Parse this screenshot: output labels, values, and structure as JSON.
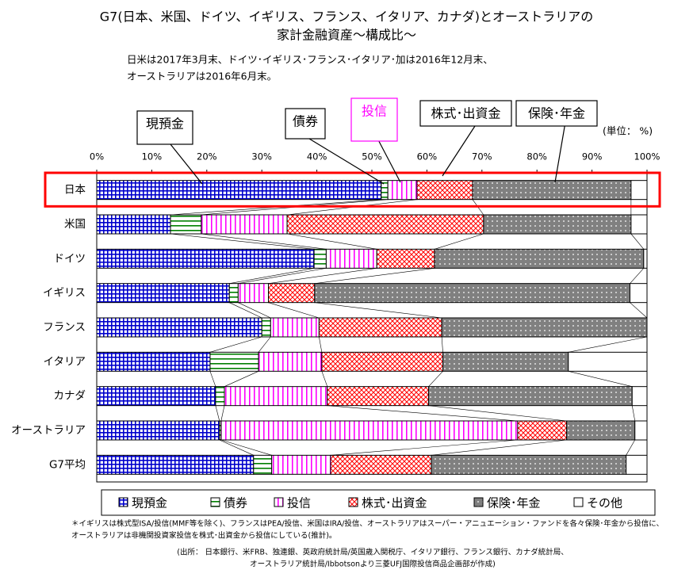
{
  "chart_data": {
    "type": "stacked-barh",
    "title": [
      "G7(日本、米国、ドイツ、イギリス、フランス、イタリア、カナダ)とオーストラリアの",
      "家計金融資産～構成比～"
    ],
    "subtitle": [
      "日米は2017年3月末、ドイツ･イギリス･フランス･イタリア･加は2016年12月末、",
      "オーストラリアは2016年6月末。"
    ],
    "unit_label": "(単位： %)",
    "annotations": [
      "現預金",
      "債券",
      "投信",
      "株式･出資金",
      "保険･年金"
    ],
    "categories": [
      "日本",
      "米国",
      "ドイツ",
      "イギリス",
      "フランス",
      "イタリア",
      "カナダ",
      "オーストラリア",
      "G7平均"
    ],
    "series": [
      {
        "name": "現預金",
        "color": "#0000cc",
        "values": [
          51.7,
          13.4,
          39.5,
          24.1,
          30.0,
          20.6,
          21.6,
          22.3,
          28.5
        ]
      },
      {
        "name": "債券",
        "color": "#008000",
        "values": [
          1.2,
          5.6,
          2.2,
          1.6,
          1.6,
          8.8,
          1.6,
          0.3,
          3.3
        ]
      },
      {
        "name": "投信",
        "color": "#ff00ff",
        "values": [
          5.3,
          15.6,
          9.2,
          5.5,
          8.8,
          11.5,
          18.7,
          53.9,
          10.7
        ]
      },
      {
        "name": "株式･出資金",
        "color": "#ff0000",
        "values": [
          10.1,
          35.7,
          10.5,
          8.4,
          22.3,
          22.0,
          18.4,
          8.9,
          18.3
        ]
      },
      {
        "name": "保険･年金",
        "color": "#808080",
        "values": [
          28.8,
          26.8,
          38.0,
          57.3,
          37.3,
          22.8,
          37.0,
          12.4,
          35.4
        ]
      },
      {
        "name": "その他",
        "color": "#ffffff",
        "values": [
          2.9,
          2.9,
          0.6,
          3.1,
          0.0,
          14.3,
          2.7,
          2.2,
          3.8
        ]
      }
    ],
    "xlim": [
      0,
      100
    ],
    "xticks": [
      {
        "value": 0,
        "label": "0%"
      },
      {
        "value": 10,
        "label": "10%"
      },
      {
        "value": 20,
        "label": "20%"
      },
      {
        "value": 30,
        "label": "30%"
      },
      {
        "value": 40,
        "label": "40%"
      },
      {
        "value": 50,
        "label": "50%"
      },
      {
        "value": 60,
        "label": "60%"
      },
      {
        "value": 70,
        "label": "70%"
      },
      {
        "value": 80,
        "label": "80%"
      },
      {
        "value": 90,
        "label": "90%"
      },
      {
        "value": 100,
        "label": "100%"
      }
    ],
    "highlight_color": "#ff0000",
    "footnotes": [
      "＊イギリスは株式型ISA/投信(MMF等を除く)、フランスはPEA/投信、米国はIRA/投信、オーストラリアはスーパー・アニュエーション・ファンドを各々保険･年金から投信に、",
      "オーストラリアは非機関投資家投信を株式･出資金から投信にしている(推計)。"
    ],
    "source": [
      "(出所： 日本銀行、米FRB、独連銀、英政府統計局/英国歳入関税庁、イタリア銀行、フランス銀行、カナダ統計局、",
      "オーストラリア統計局/Ibbotsonより三菱UFJ国際投信商品企画部が作成)"
    ]
  }
}
